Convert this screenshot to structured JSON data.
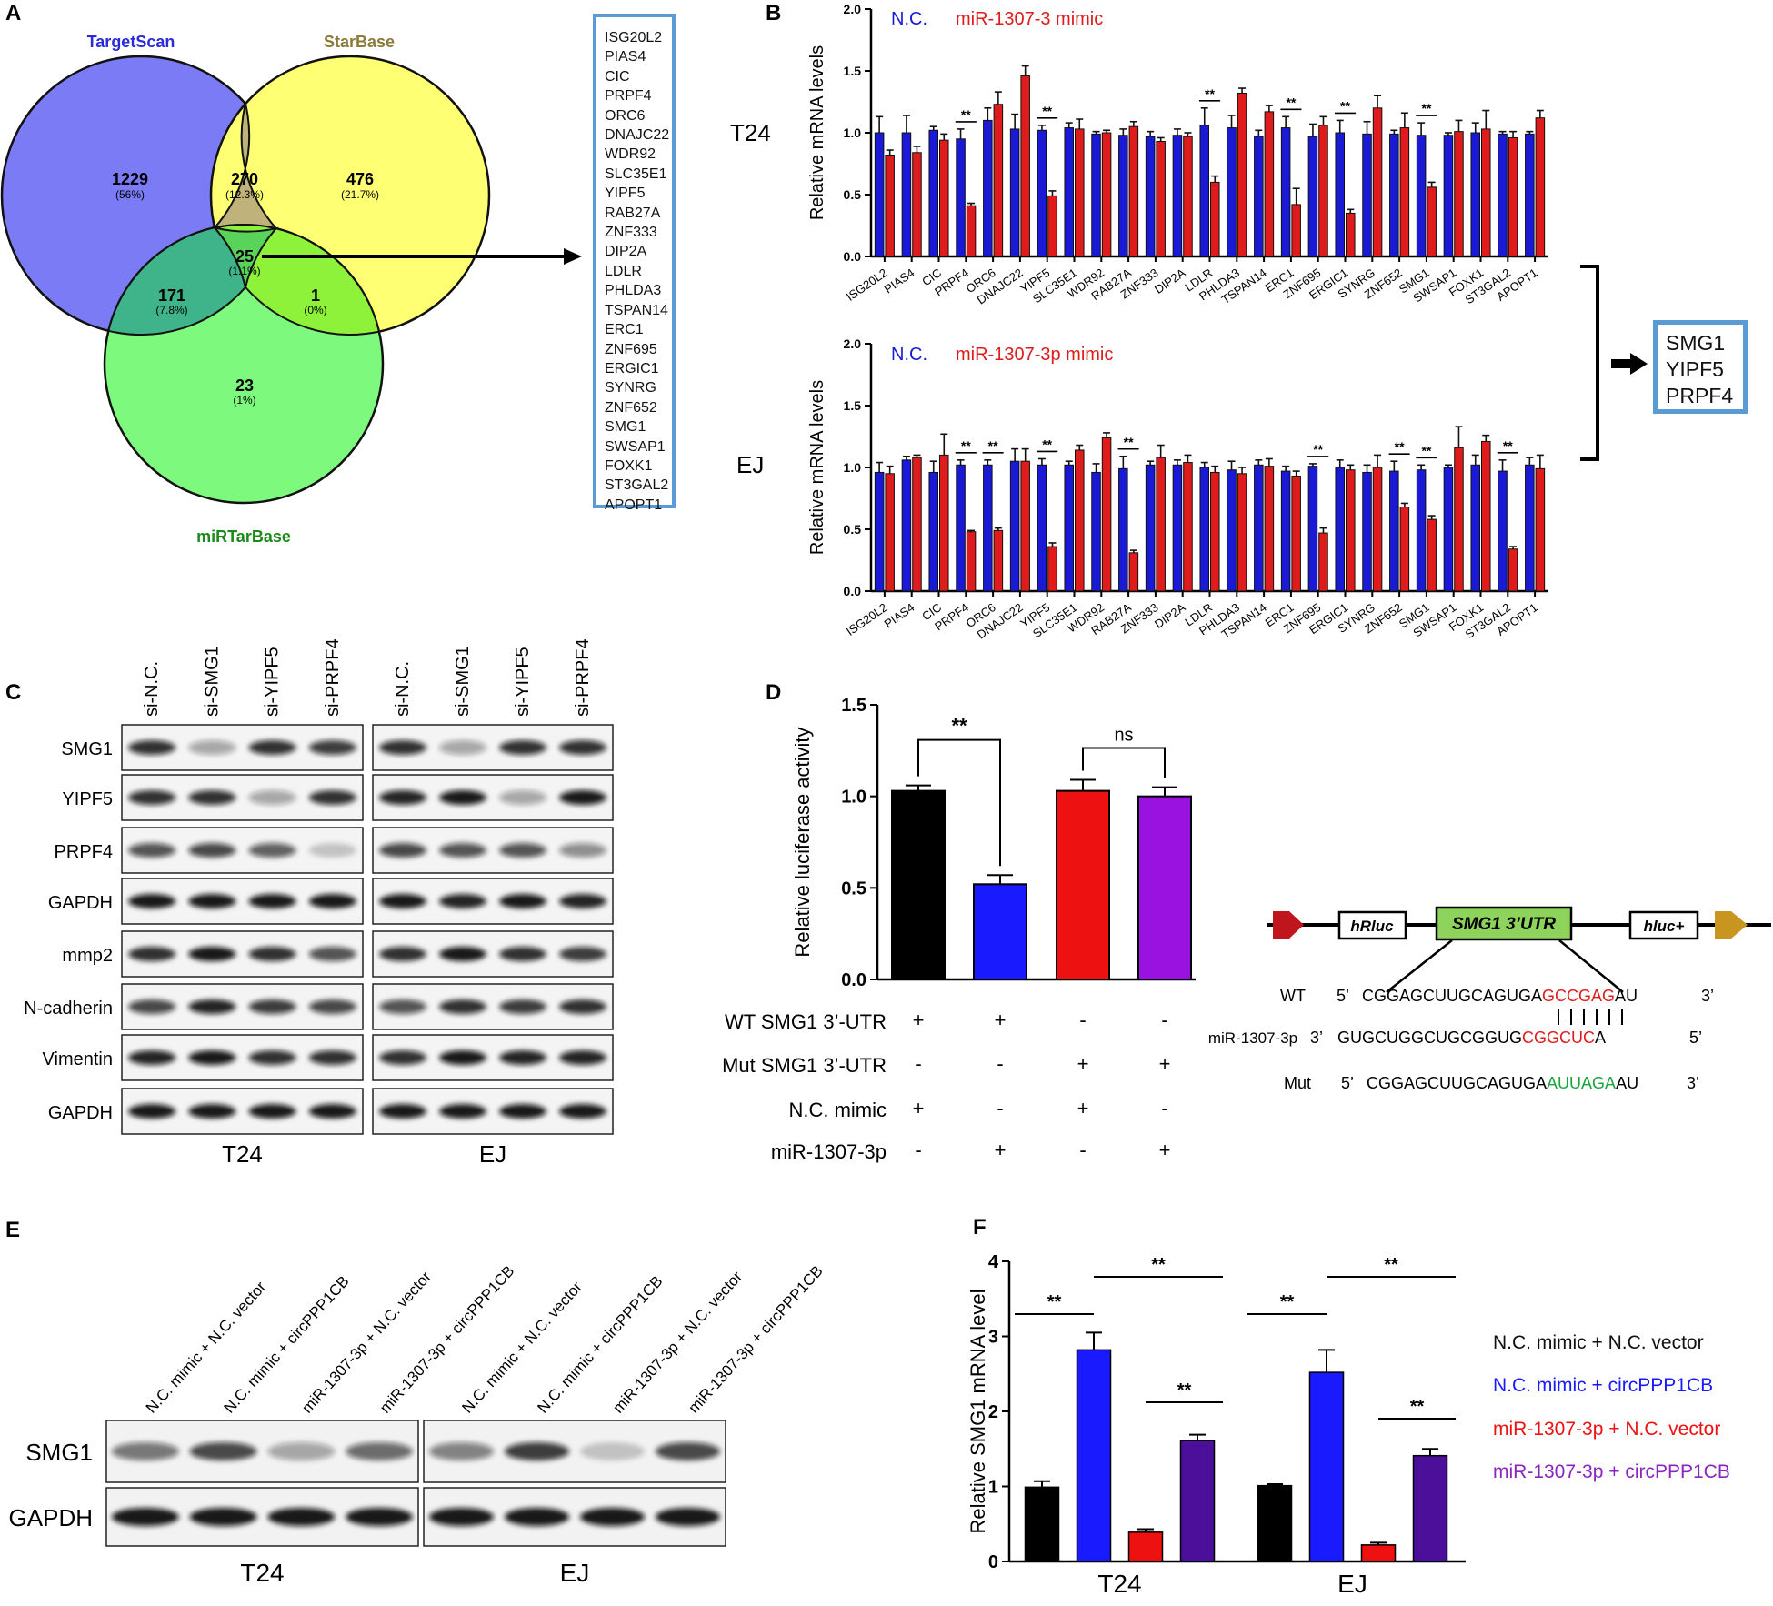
{
  "panel_labels": {
    "a": "A",
    "b": "B",
    "c": "C",
    "d": "D",
    "e": "E",
    "f": "F"
  },
  "venn": {
    "sets": [
      "TargetScan",
      "StarBase",
      "miRTarBase"
    ],
    "colors": {
      "targetscan": "#7b7bf5",
      "starbase": "#ffff73",
      "mirtarbase": "#7dfa7d",
      "ts_sb": "#bfb27a",
      "ts_mtb": "#3fb38a",
      "sb_mtb": "#8ef23a",
      "all": "#5ad35a",
      "ts_label": "#2b2bd9",
      "sb_label": "#8c7a3a",
      "mtb_label": "#1b8a1b"
    },
    "regions": [
      {
        "count": "1229",
        "pct": "(56%)"
      },
      {
        "count": "270",
        "pct": "(12.3%)"
      },
      {
        "count": "476",
        "pct": "(21.7%)"
      },
      {
        "count": "25",
        "pct": "(1.1%)"
      },
      {
        "count": "171",
        "pct": "(7.8%)"
      },
      {
        "count": "1",
        "pct": "(0%)"
      },
      {
        "count": "23",
        "pct": "(1%)"
      }
    ],
    "genes": [
      "ISG20L2",
      "PIAS4",
      "CIC",
      "PRPF4",
      "ORC6",
      "DNAJC22",
      "WDR92",
      "SLC35E1",
      "YIPF5",
      "RAB27A",
      "ZNF333",
      "DIP2A",
      "LDLR",
      "PHLDA3",
      "TSPAN14",
      "ERC1",
      "ZNF695",
      "ERGIC1",
      "SYNRG",
      "ZNF652",
      "SMG1",
      "SWSAP1",
      "FOXK1",
      "ST3GAL2",
      "APOPT1"
    ]
  },
  "panel_b": {
    "result_genes": [
      "SMG1",
      "YIPF5",
      "PRPF4"
    ]
  },
  "panel_c": {
    "lanes": [
      "si-N.C.",
      "si-SMG1",
      "si-YIPF5",
      "si-PRPF4"
    ],
    "rows": [
      "SMG1",
      "YIPF5",
      "PRPF4",
      "GAPDH",
      "mmp2",
      "N-cadherin",
      "Vimentin",
      "GAPDH"
    ],
    "cells": [
      "T24",
      "EJ"
    ]
  },
  "panel_d_construct": {
    "elements": [
      "hRluc",
      "SMG1 3’UTR",
      "hluc+"
    ],
    "wt": {
      "label": "WT",
      "five": "5’",
      "seq_start": "CGGAGCUUGCAGUGA",
      "seq_site": "GCCGAG",
      "seq_end": "AU",
      "three": "3’"
    },
    "mir": {
      "label": "miR-1307-3p",
      "three": "3’",
      "seq_start": "GUGCUGGCUGCGGUG",
      "seq_site": "CGGCUC",
      "seq_end": "A",
      "five": "5’"
    },
    "mut": {
      "label": "Mut",
      "five": "5’",
      "seq_start": "CGGAGCUUGCAGUGA",
      "seq_site": "AUUAGA",
      "seq_end": "AU",
      "three": "3’"
    },
    "colors": {
      "site": "#e01b1b",
      "mut": "#19a53c",
      "construct_fill": "#8ed35b"
    }
  },
  "panel_e": {
    "lanes": [
      "N.C. mimic + N.C. vector",
      "N.C. mimic + circPPP1CB",
      "miR-1307-3p + N.C. vector",
      "miR-1307-3p + circPPP1CB"
    ],
    "rows": [
      "SMG1",
      "GAPDH"
    ],
    "cells": [
      "T24",
      "EJ"
    ]
  },
  "chart_data": [
    {
      "id": "B-top",
      "type": "bar",
      "cell": "T24",
      "title": "",
      "ylabel": "Relative  mRNA levels",
      "ylim": [
        0,
        2.0
      ],
      "yticks": [
        "0.0",
        "0.5",
        "1.0",
        "1.5",
        "2.0"
      ],
      "categories": [
        "ISG20L2",
        "PIAS4",
        "CIC",
        "PRPF4",
        "ORC6",
        "DNAJC22",
        "YIPF5",
        "SLC35E1",
        "WDR92",
        "RAB27A",
        "ZNF333",
        "DIP2A",
        "LDLR",
        "PHLDA3",
        "TSPAN14",
        "ERC1",
        "ZNF695",
        "ERGIC1",
        "SYNRG",
        "ZNF652",
        "SMG1",
        "SWSAP1",
        "FOXK1",
        "ST3GAL2",
        "APOPT1"
      ],
      "series": [
        {
          "name": "N.C.",
          "color": "#1a1ad6",
          "values": [
            1.0,
            1.0,
            1.02,
            0.95,
            1.1,
            1.03,
            1.02,
            1.04,
            0.99,
            0.98,
            0.97,
            0.98,
            1.06,
            1.04,
            0.97,
            1.04,
            0.97,
            1.0,
            0.99,
            0.99,
            0.98,
            0.98,
            1.0,
            0.99,
            0.99
          ],
          "errors": [
            0.13,
            0.14,
            0.03,
            0.08,
            0.1,
            0.12,
            0.04,
            0.04,
            0.02,
            0.05,
            0.04,
            0.05,
            0.14,
            0.1,
            0.05,
            0.09,
            0.1,
            0.1,
            0.1,
            0.03,
            0.1,
            0.02,
            0.08,
            0.02,
            0.02
          ]
        },
        {
          "name": "miR-1307-3 mimic",
          "color": "#e01b1b",
          "values": [
            0.82,
            0.84,
            0.94,
            0.41,
            1.23,
            1.46,
            0.49,
            1.03,
            1.0,
            1.05,
            0.93,
            0.97,
            0.6,
            1.32,
            1.17,
            0.42,
            1.06,
            0.35,
            1.2,
            1.04,
            0.56,
            1.01,
            1.03,
            0.96,
            1.12
          ],
          "errors": [
            0.04,
            0.05,
            0.05,
            0.02,
            0.1,
            0.08,
            0.04,
            0.08,
            0.02,
            0.04,
            0.03,
            0.03,
            0.05,
            0.04,
            0.05,
            0.13,
            0.07,
            0.03,
            0.1,
            0.12,
            0.04,
            0.09,
            0.15,
            0.05,
            0.06
          ]
        }
      ],
      "significance": [
        {
          "category": "PRPF4",
          "label": "**"
        },
        {
          "category": "YIPF5",
          "label": "**"
        },
        {
          "category": "LDLR",
          "label": "**"
        },
        {
          "category": "ERC1",
          "label": "**"
        },
        {
          "category": "ERGIC1",
          "label": "**"
        },
        {
          "category": "SMG1",
          "label": "**"
        }
      ]
    },
    {
      "id": "B-bottom",
      "type": "bar",
      "cell": "EJ",
      "title": "",
      "ylabel": "Relative  mRNA levels",
      "ylim": [
        0,
        2.0
      ],
      "yticks": [
        "0.0",
        "0.5",
        "1.0",
        "1.5",
        "2.0"
      ],
      "categories": [
        "ISG20L2",
        "PIAS4",
        "CIC",
        "PRPF4",
        "ORC6",
        "DNAJC22",
        "YIPF5",
        "SLC35E1",
        "WDR92",
        "RAB27A",
        "ZNF333",
        "DIP2A",
        "LDLR",
        "PHLDA3",
        "TSPAN14",
        "ERC1",
        "ZNF695",
        "ERGIC1",
        "SYNRG",
        "ZNF652",
        "SMG1",
        "SWSAP1",
        "FOXK1",
        "ST3GAL2",
        "APOPT1"
      ],
      "series": [
        {
          "name": "N.C.",
          "color": "#1a1ad6",
          "values": [
            0.96,
            1.06,
            0.96,
            1.02,
            1.02,
            1.05,
            1.02,
            1.02,
            0.96,
            0.99,
            1.02,
            1.02,
            1.0,
            0.98,
            1.02,
            0.97,
            1.01,
            1.0,
            0.96,
            0.97,
            0.98,
            1.0,
            1.02,
            0.97,
            1.02
          ],
          "errors": [
            0.08,
            0.03,
            0.09,
            0.04,
            0.04,
            0.1,
            0.05,
            0.03,
            0.07,
            0.1,
            0.03,
            0.04,
            0.04,
            0.07,
            0.04,
            0.04,
            0.02,
            0.06,
            0.06,
            0.08,
            0.04,
            0.02,
            0.08,
            0.09,
            0.06
          ]
        },
        {
          "name": "miR-1307-3p mimic",
          "color": "#e01b1b",
          "values": [
            0.95,
            1.08,
            1.1,
            0.48,
            0.49,
            1.05,
            0.36,
            1.14,
            1.24,
            0.31,
            1.08,
            1.04,
            0.96,
            0.95,
            1.01,
            0.93,
            0.47,
            0.98,
            1.0,
            0.68,
            0.58,
            1.16,
            1.21,
            0.34,
            0.99
          ],
          "errors": [
            0.06,
            0.02,
            0.17,
            0.01,
            0.02,
            0.1,
            0.03,
            0.04,
            0.04,
            0.02,
            0.1,
            0.06,
            0.05,
            0.05,
            0.06,
            0.04,
            0.04,
            0.04,
            0.1,
            0.03,
            0.03,
            0.17,
            0.05,
            0.02,
            0.11
          ]
        }
      ],
      "significance": [
        {
          "category": "PRPF4",
          "label": "**"
        },
        {
          "category": "ORC6",
          "label": "**"
        },
        {
          "category": "YIPF5",
          "label": "**"
        },
        {
          "category": "RAB27A",
          "label": "**"
        },
        {
          "category": "ZNF695",
          "label": "**"
        },
        {
          "category": "ZNF652",
          "label": "**"
        },
        {
          "category": "SMG1",
          "label": "**"
        },
        {
          "category": "ST3GAL2",
          "label": "**"
        }
      ]
    },
    {
      "id": "D",
      "type": "bar",
      "title": "",
      "ylabel": "Relative luciferase activity",
      "ylim": [
        0,
        1.5
      ],
      "yticks": [
        "0.0",
        "0.5",
        "1.0",
        "1.5"
      ],
      "values": [
        1.03,
        0.52,
        1.03,
        1.0
      ],
      "errors": [
        0.03,
        0.05,
        0.06,
        0.05
      ],
      "colors": [
        "#000000",
        "#1a1aff",
        "#ee1111",
        "#9a12e0"
      ],
      "conditions": [
        {
          "label": "WT SMG1 3’-UTR",
          "marks": [
            "+",
            "+",
            "-",
            "-"
          ]
        },
        {
          "label": "Mut SMG1 3’-UTR",
          "marks": [
            "-",
            "-",
            "+",
            "+"
          ]
        },
        {
          "label": "N.C. mimic",
          "marks": [
            "+",
            "-",
            "+",
            "-"
          ]
        },
        {
          "label": "miR-1307-3p",
          "marks": [
            "-",
            "+",
            "-",
            "+"
          ]
        }
      ],
      "comparisons": [
        {
          "bars": [
            0,
            1
          ],
          "label": "**"
        },
        {
          "bars": [
            2,
            3
          ],
          "label": "ns"
        }
      ]
    },
    {
      "id": "F",
      "type": "bar",
      "title": "",
      "ylabel": "Relative SMG1 mRNA level",
      "ylim": [
        0,
        4
      ],
      "yticks": [
        "0",
        "1",
        "2",
        "3",
        "4"
      ],
      "categories": [
        "T24",
        "EJ"
      ],
      "series": [
        {
          "name": "N.C. mimic + N.C. vector",
          "color": "#000000",
          "values": [
            0.99,
            1.01
          ],
          "errors": [
            0.08,
            0.02
          ]
        },
        {
          "name": "N.C. mimic + circPPP1CB",
          "color": "#1a1aff",
          "values": [
            2.82,
            2.52
          ],
          "errors": [
            0.23,
            0.3
          ]
        },
        {
          "name": "miR-1307-3p + N.C. vector",
          "color": "#ee1111",
          "values": [
            0.39,
            0.22
          ],
          "errors": [
            0.04,
            0.03
          ]
        },
        {
          "name": "miR-1307-3p + circPPP1CB",
          "color": "#4b0f9a",
          "values": [
            1.61,
            1.41
          ],
          "errors": [
            0.08,
            0.09
          ]
        }
      ],
      "legend_colors": [
        "#111111",
        "#1a1aff",
        "#ee1111",
        "#8a25c0"
      ],
      "comparisons": [
        {
          "category": 0,
          "bars": [
            0,
            1
          ],
          "label": "**"
        },
        {
          "category": 0,
          "bars": [
            1,
            3
          ],
          "label": "**"
        },
        {
          "category": 0,
          "bars": [
            2,
            3
          ],
          "label": "**"
        },
        {
          "category": 1,
          "bars": [
            0,
            1
          ],
          "label": "**"
        },
        {
          "category": 1,
          "bars": [
            1,
            3
          ],
          "label": "**"
        },
        {
          "category": 1,
          "bars": [
            2,
            3
          ],
          "label": "**"
        }
      ]
    }
  ]
}
